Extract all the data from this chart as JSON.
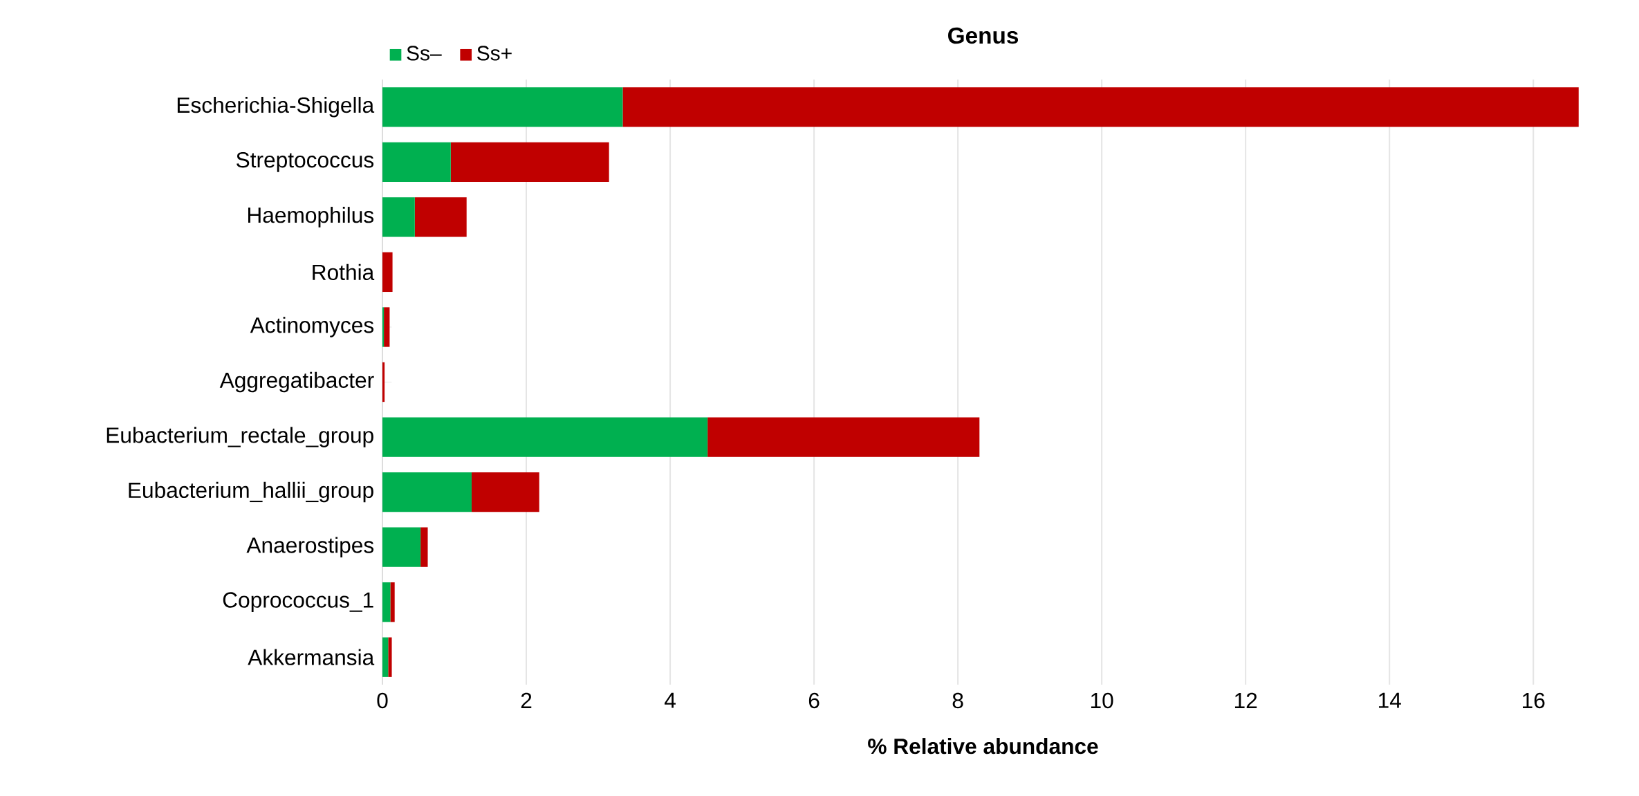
{
  "chart_data": {
    "type": "bar",
    "orientation": "horizontal",
    "stacked": true,
    "title": "Genus",
    "xlabel": "% Relative abundance",
    "categories": [
      "Escherichia-Shigella",
      "Streptococcus",
      "Haemophilus",
      "Rothia",
      "Actinomyces",
      "Aggregatibacter",
      "Eubacterium_rectale_group",
      "Eubacterium_hallii_group",
      "Anaerostipes",
      "Coprococcus_1",
      "Akkermansia"
    ],
    "series": [
      {
        "name": "Ss–",
        "color": "#00b050",
        "values": [
          3.34,
          0.95,
          0.45,
          0,
          0.02,
          0,
          4.52,
          1.24,
          0.53,
          0.11,
          0.08
        ]
      },
      {
        "name": "Ss+",
        "color": "#c00000",
        "values": [
          13.29,
          2.2,
          0.72,
          0.14,
          0.08,
          0.03,
          3.78,
          0.94,
          0.1,
          0.06,
          0.05
        ]
      }
    ],
    "xlim": [
      0,
      16.7
    ],
    "xticks": [
      0,
      2,
      4,
      6,
      8,
      10,
      12,
      14,
      16
    ],
    "grid": "x",
    "legend": "top left"
  }
}
